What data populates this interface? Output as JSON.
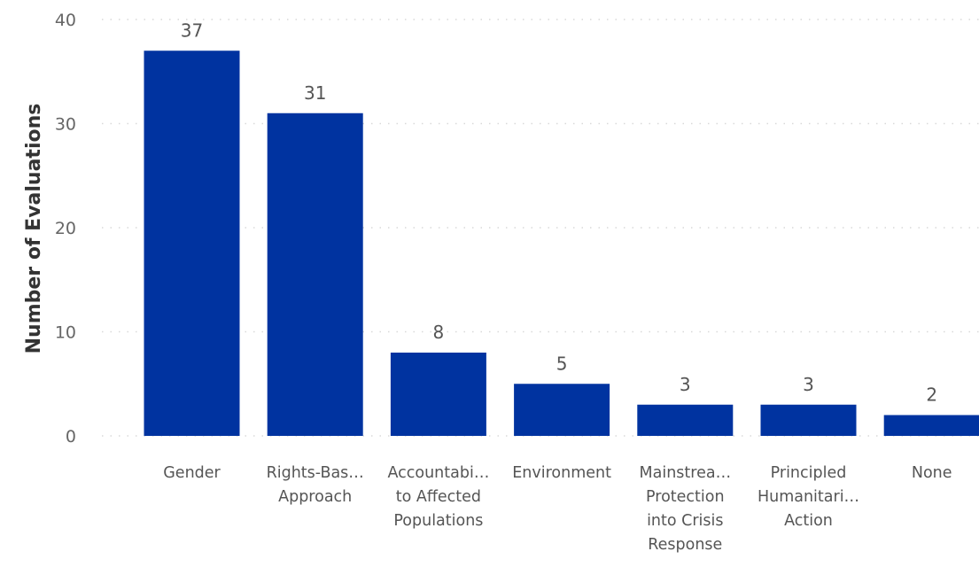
{
  "chart_data": {
    "type": "bar",
    "title": "",
    "xlabel": "",
    "ylabel": "Number of Evaluations",
    "ylim": [
      0,
      40
    ],
    "yticks": [
      0,
      10,
      20,
      30,
      40
    ],
    "grid": true,
    "categories": [
      "Gender",
      "Rights-Bas… Approach",
      "Accountabi… to Affected Populations",
      "Environment",
      "Mainstrea… Protection into Crisis Response",
      "Principled Humanitari… Action",
      "None"
    ],
    "category_lines": [
      [
        "Gender"
      ],
      [
        "Rights-Bas…",
        "Approach"
      ],
      [
        "Accountabi…",
        "to Affected",
        "Populations"
      ],
      [
        "Environment"
      ],
      [
        "Mainstrea…",
        "Protection",
        "into Crisis",
        "Response"
      ],
      [
        "Principled",
        "Humanitari…",
        "Action"
      ],
      [
        "None"
      ]
    ],
    "values": [
      37,
      31,
      8,
      5,
      3,
      3,
      2
    ],
    "data_labels": [
      "37",
      "31",
      "8",
      "5",
      "3",
      "3",
      "2"
    ],
    "bar_color": "#0033a0",
    "label_color_inside": "#ffffff",
    "label_color_outside": "#555555"
  }
}
